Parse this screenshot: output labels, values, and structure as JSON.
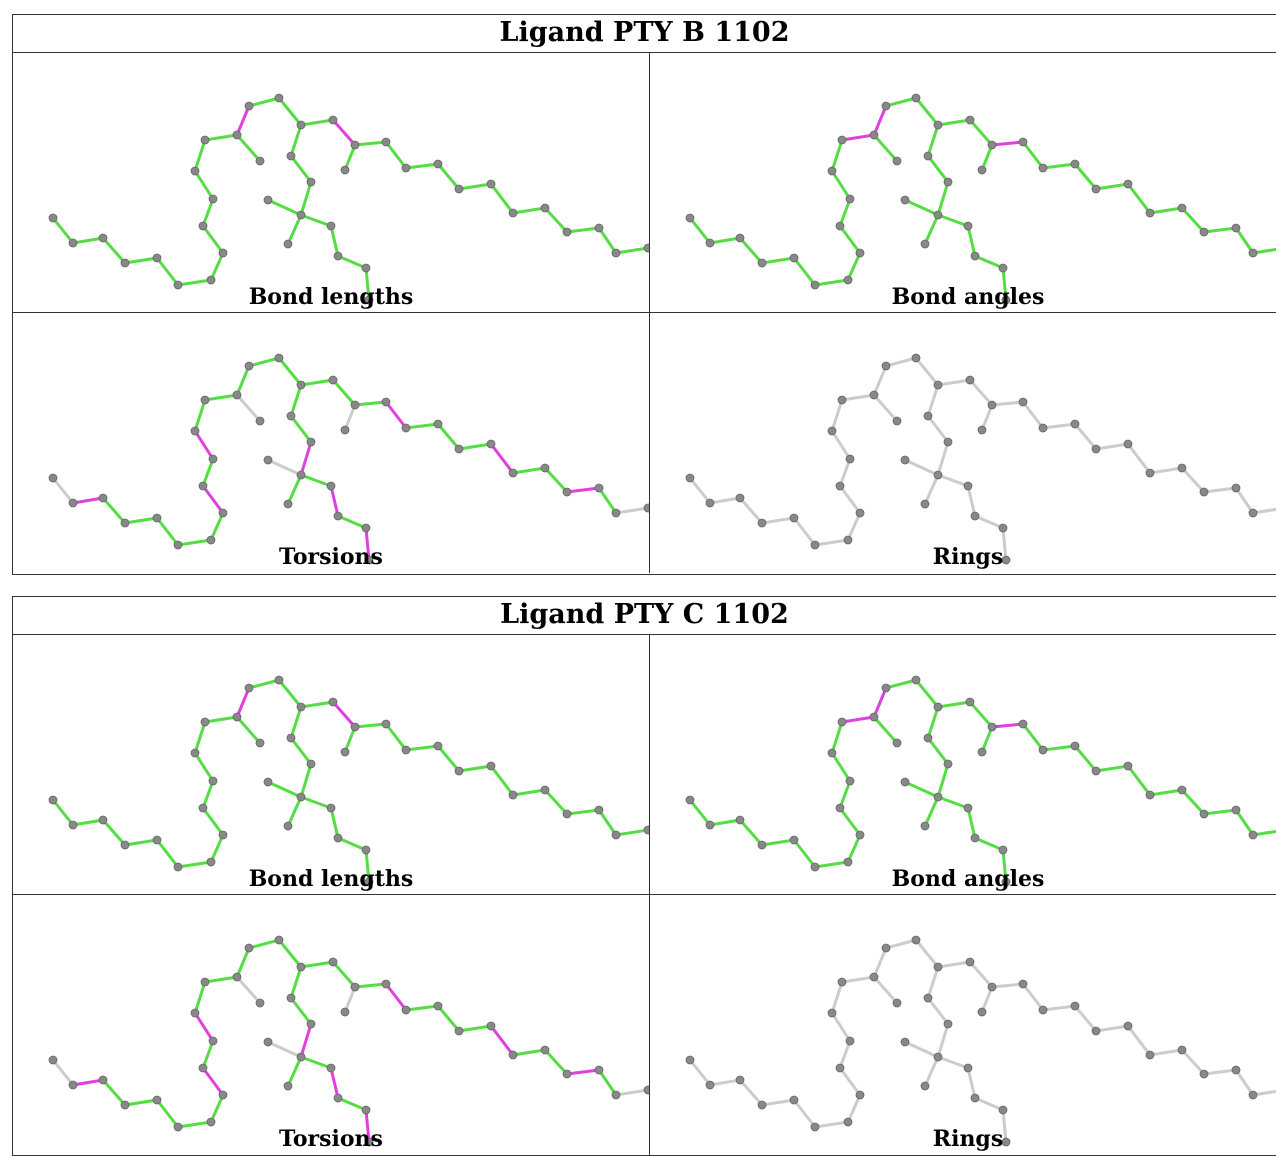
{
  "tables": [
    {
      "title": "Ligand PTY B 1102",
      "panels": [
        {
          "label": "Bond lengths",
          "scheme": "lengths"
        },
        {
          "label": "Bond angles",
          "scheme": "angles"
        },
        {
          "label": "Torsions",
          "scheme": "torsions"
        },
        {
          "label": "Rings",
          "scheme": "rings"
        }
      ]
    },
    {
      "title": "Ligand PTY C 1102",
      "panels": [
        {
          "label": "Bond lengths",
          "scheme": "lengths"
        },
        {
          "label": "Bond angles",
          "scheme": "angles"
        },
        {
          "label": "Torsions",
          "scheme": "torsions"
        },
        {
          "label": "Rings",
          "scheme": "rings"
        }
      ]
    }
  ],
  "colors": {
    "ok_bond": "#55dd44",
    "outlier_bond": "#e040e0",
    "neutral_bond": "#cccccc",
    "atom": "#888888"
  }
}
